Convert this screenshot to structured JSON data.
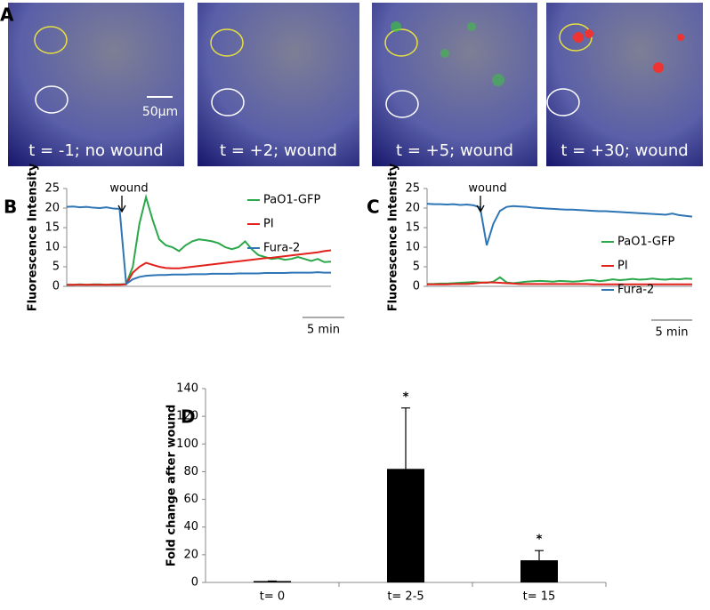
{
  "figure": {
    "panel_labels": [
      "A",
      "B",
      "C",
      "D"
    ],
    "images": [
      {
        "caption": "t = -1; no wound"
      },
      {
        "caption": "t = +2; wound"
      },
      {
        "caption": "t = +5; wound"
      },
      {
        "caption": "t = +30; wound"
      }
    ],
    "scale_bar": "50μm"
  },
  "chart_data": [
    {
      "type": "line",
      "y_label": "Fluorescence Intensity",
      "annotation": "wound",
      "scale_bar": "5 min",
      "ylim": [
        0,
        25
      ],
      "yticks": [
        0,
        5,
        10,
        15,
        20,
        25
      ],
      "series": [
        {
          "name": "PaO1-GFP",
          "color": "#2aa84a",
          "values": [
            0.4,
            0.4,
            0.5,
            0.4,
            0.5,
            0.5,
            0.4,
            0.5,
            0.5,
            0.6,
            5,
            16,
            22.8,
            17,
            12,
            10.5,
            10,
            9,
            10.5,
            11.5,
            12,
            11.8,
            11.5,
            11,
            10,
            9.5,
            10,
            11.5,
            9.5,
            8,
            7.5,
            7,
            7.2,
            6.8,
            7,
            7.5,
            7,
            6.5,
            7,
            6.2,
            6.3
          ]
        },
        {
          "name": "PI",
          "color": "#e3211c",
          "values": [
            0.4,
            0.4,
            0.4,
            0.4,
            0.4,
            0.4,
            0.4,
            0.4,
            0.4,
            0.5,
            3.5,
            5,
            6,
            5.5,
            5,
            4.7,
            4.6,
            4.6,
            4.8,
            5,
            5.2,
            5.4,
            5.6,
            5.8,
            6,
            6.2,
            6.4,
            6.6,
            6.8,
            7,
            7.2,
            7.3,
            7.5,
            7.7,
            7.9,
            8.1,
            8.3,
            8.5,
            8.7,
            9,
            9.2
          ]
        },
        {
          "name": "Fura-2",
          "color": "#2e75b6",
          "values": [
            20.3,
            20.4,
            20.2,
            20.3,
            20.1,
            20.0,
            20.2,
            19.9,
            19.8,
            0.6,
            1.8,
            2.4,
            2.7,
            2.8,
            2.9,
            2.9,
            3.0,
            3.0,
            3.0,
            3.1,
            3.1,
            3.1,
            3.2,
            3.2,
            3.2,
            3.2,
            3.3,
            3.3,
            3.3,
            3.3,
            3.4,
            3.4,
            3.4,
            3.4,
            3.5,
            3.5,
            3.5,
            3.5,
            3.6,
            3.5,
            3.5
          ]
        }
      ]
    },
    {
      "type": "line",
      "y_label": "Fluorescence Intensity",
      "annotation": "wound",
      "scale_bar": "5 min",
      "ylim": [
        0,
        25
      ],
      "yticks": [
        0,
        5,
        10,
        15,
        20,
        25
      ],
      "series": [
        {
          "name": "PaO1-GFP",
          "color": "#2aa84a",
          "values": [
            0.6,
            0.6,
            0.7,
            0.7,
            0.8,
            0.9,
            1.0,
            1.1,
            1.0,
            0.9,
            1.2,
            2.3,
            1.0,
            0.8,
            1.0,
            1.2,
            1.3,
            1.4,
            1.3,
            1.2,
            1.4,
            1.3,
            1.2,
            1.3,
            1.5,
            1.6,
            1.3,
            1.5,
            1.8,
            1.6,
            1.7,
            1.9,
            1.7,
            1.8,
            2.0,
            1.8,
            1.7,
            1.9,
            1.8,
            2.0,
            1.9
          ]
        },
        {
          "name": "PI",
          "color": "#e3211c",
          "values": [
            0.5,
            0.5,
            0.5,
            0.5,
            0.6,
            0.6,
            0.6,
            0.7,
            0.9,
            1.0,
            1.0,
            0.9,
            0.8,
            0.7,
            0.6,
            0.6,
            0.6,
            0.6,
            0.6,
            0.6,
            0.6,
            0.6,
            0.6,
            0.6,
            0.6,
            0.5,
            0.5,
            0.5,
            0.5,
            0.5,
            0.5,
            0.5,
            0.5,
            0.5,
            0.5,
            0.5,
            0.5,
            0.5,
            0.5,
            0.5,
            0.5
          ]
        },
        {
          "name": "Fura-2",
          "color": "#2e75b6",
          "values": [
            21.1,
            21.0,
            21.0,
            20.9,
            21.0,
            20.8,
            20.9,
            20.7,
            20.2,
            10.5,
            16,
            19.3,
            20.3,
            20.5,
            20.4,
            20.3,
            20.1,
            20.0,
            19.9,
            19.8,
            19.7,
            19.6,
            19.6,
            19.5,
            19.4,
            19.3,
            19.2,
            19.2,
            19.1,
            19.0,
            18.9,
            18.8,
            18.7,
            18.6,
            18.5,
            18.4,
            18.3,
            18.6,
            18.2,
            18.0,
            17.8
          ]
        }
      ]
    },
    {
      "type": "bar",
      "y_label": "Fold change after wound",
      "categories": [
        "t= 0",
        "t= 2-5",
        "t= 15"
      ],
      "values": [
        1,
        82,
        16
      ],
      "errors": [
        0,
        44,
        7
      ],
      "significance": [
        null,
        "*",
        "*"
      ],
      "color": "#000000",
      "ylim": [
        0,
        140
      ],
      "yticks": [
        0,
        20,
        40,
        60,
        80,
        100,
        120,
        140
      ]
    }
  ]
}
